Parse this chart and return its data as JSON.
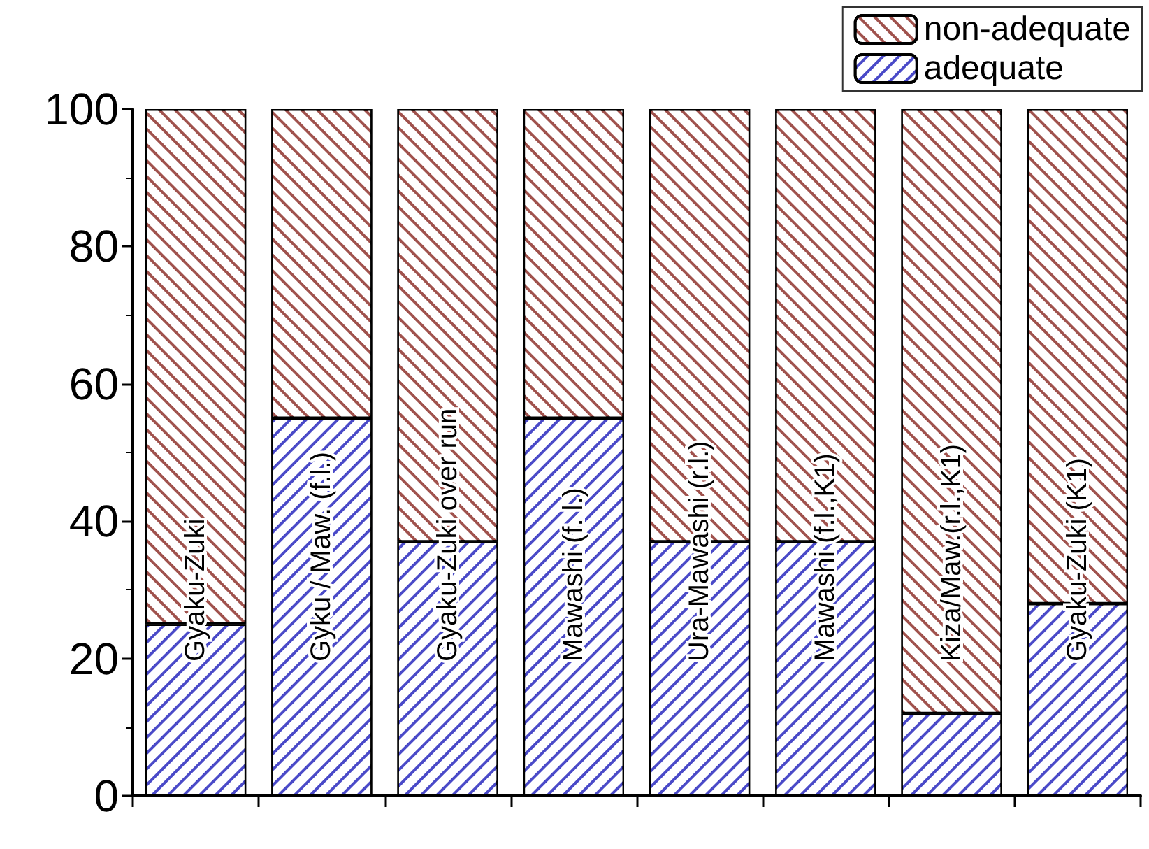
{
  "chart_data": {
    "type": "bar",
    "stacked": true,
    "categories": [
      "Gyaku-Zuki",
      "Gyku / Maw. (f.l.)",
      "Gyaku-Zuki over run",
      "Mawashi (f. l.)",
      "Ura-Mawashi (r.l.)",
      "Mawashi (f.l.,K1)",
      "Kiza/Maw.(r.l.,K1)",
      "Gyaku-Zuki (K1)"
    ],
    "series": [
      {
        "name": "adequate",
        "color": "#4a4ac8",
        "values": [
          25,
          55,
          37,
          55,
          37,
          37,
          12,
          28
        ]
      },
      {
        "name": "non-adequate",
        "color": "#a0524d",
        "values": [
          75,
          45,
          63,
          45,
          63,
          63,
          88,
          72
        ]
      }
    ],
    "ylim": [
      0,
      100
    ],
    "yticks": [
      0,
      20,
      40,
      60,
      80,
      100
    ],
    "legend": "top right",
    "grid": false
  }
}
